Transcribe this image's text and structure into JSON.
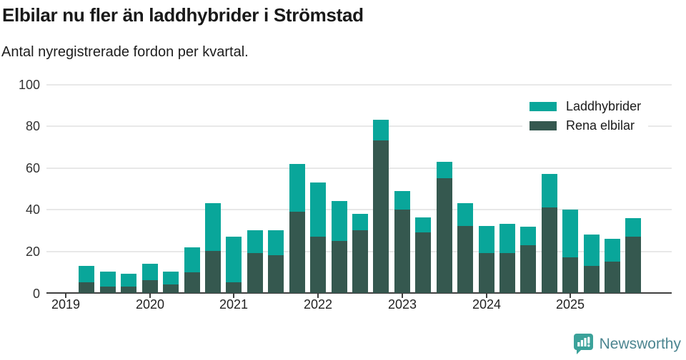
{
  "header": {
    "title": "Elbilar nu fler än laddhybrider i Strömstad",
    "subtitle": "Antal nyregistrerade fordon per kvartal."
  },
  "legend": {
    "items": [
      {
        "label": "Laddhybrider",
        "color": "#09a69a"
      },
      {
        "label": "Rena elbilar",
        "color": "#35584f"
      }
    ]
  },
  "axes": {
    "y_tick_labels": [
      "0",
      "20",
      "40",
      "60",
      "80",
      "100"
    ],
    "x_tick_labels": [
      "2019",
      "2020",
      "2021",
      "2022",
      "2023",
      "2024",
      "2025"
    ]
  },
  "footer": {
    "brand": "Newsworthy"
  },
  "colors": {
    "laddhybrider": "#09a69a",
    "rena_elbilar": "#35584f",
    "grid": "#e8e8e8",
    "axis": "#3f3f3f",
    "brand_text": "#4c8590",
    "brand_icon": "#3ba29a"
  },
  "chart_data": {
    "type": "bar",
    "stacked": true,
    "title": "Elbilar nu fler än laddhybrider i Strömstad",
    "subtitle": "Antal nyregistrerade fordon per kvartal.",
    "x": [
      "2019Q2",
      "2019Q3",
      "2019Q4",
      "2020Q1",
      "2020Q2",
      "2020Q3",
      "2020Q4",
      "2021Q1",
      "2021Q2",
      "2021Q3",
      "2021Q4",
      "2022Q1",
      "2022Q2",
      "2022Q3",
      "2022Q4",
      "2023Q1",
      "2023Q2",
      "2023Q3",
      "2023Q4",
      "2024Q1",
      "2024Q2",
      "2024Q3",
      "2024Q4",
      "2025Q1",
      "2025Q2",
      "2025Q3",
      "2025Q4"
    ],
    "series": [
      {
        "name": "Rena elbilar",
        "stack_position": "bottom",
        "color": "#35584f",
        "values": [
          5,
          3,
          3,
          6,
          4,
          10,
          20,
          5,
          19,
          18,
          39,
          27,
          25,
          30,
          73,
          40,
          29,
          55,
          32,
          19,
          19,
          23,
          41,
          17,
          13,
          15,
          27
        ]
      },
      {
        "name": "Laddhybrider",
        "stack_position": "top",
        "color": "#09a69a",
        "values": [
          8,
          7,
          6,
          8,
          6,
          12,
          23,
          22,
          11,
          12,
          23,
          26,
          19,
          8,
          10,
          9,
          7,
          8,
          11,
          13,
          14,
          9,
          16,
          23,
          15,
          11,
          9
        ]
      }
    ],
    "totals": [
      13,
      10,
      9,
      14,
      10,
      22,
      43,
      27,
      30,
      30,
      62,
      53,
      44,
      38,
      83,
      49,
      36,
      63,
      43,
      32,
      33,
      32,
      57,
      40,
      28,
      26,
      36
    ],
    "xticks": [
      "2019",
      "2020",
      "2021",
      "2022",
      "2023",
      "2024",
      "2025"
    ],
    "yticks": [
      0,
      20,
      40,
      60,
      80,
      100
    ],
    "ylim": [
      0,
      100
    ],
    "grid": true,
    "legend_position": "top-right"
  }
}
